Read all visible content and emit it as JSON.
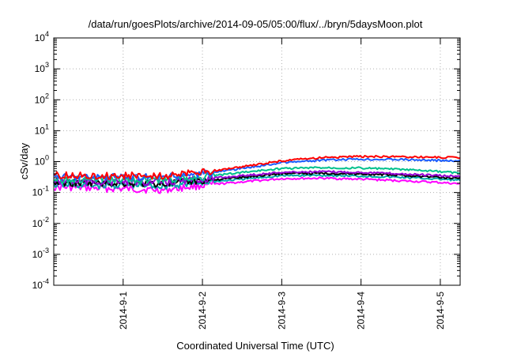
{
  "chart_data": {
    "type": "line",
    "title": "/data/run/goesPlots/archive/2014-09-05/05:00/flux/../bryn/5daysMoon.plot",
    "xlabel": "Coordinated Universal Time (UTC)",
    "ylabel": "cSv/day",
    "y_scale": "log",
    "ylim": [
      0.0001,
      10000
    ],
    "y_ticks": [
      {
        "base": "10",
        "exp": "-4",
        "value": 0.0001
      },
      {
        "base": "10",
        "exp": "-3",
        "value": 0.001
      },
      {
        "base": "10",
        "exp": "-2",
        "value": 0.01
      },
      {
        "base": "10",
        "exp": "-1",
        "value": 0.1
      },
      {
        "base": "10",
        "exp": "0",
        "value": 1
      },
      {
        "base": "10",
        "exp": "1",
        "value": 10
      },
      {
        "base": "10",
        "exp": "2",
        "value": 100
      },
      {
        "base": "10",
        "exp": "3",
        "value": 1000
      },
      {
        "base": "10",
        "exp": "4",
        "value": 10000
      }
    ],
    "xlim": [
      "2014-08-31T03:00",
      "2014-09-05T06:00"
    ],
    "x_ticks": [
      {
        "label": "2014-9-1",
        "value": "2014-09-01T00:00"
      },
      {
        "label": "2014-9-2",
        "value": "2014-09-02T00:00"
      },
      {
        "label": "2014-9-3",
        "value": "2014-09-03T00:00"
      },
      {
        "label": "2014-9-4",
        "value": "2014-09-04T00:00"
      },
      {
        "label": "2014-9-5",
        "value": "2014-09-05T00:00"
      }
    ],
    "grid": true,
    "legend": "none",
    "x": [
      "2014-08-31T03:00",
      "2014-08-31T12:00",
      "2014-09-01T00:00",
      "2014-09-01T12:00",
      "2014-09-02T00:00",
      "2014-09-02T12:00",
      "2014-09-03T00:00",
      "2014-09-03T12:00",
      "2014-09-04T00:00",
      "2014-09-04T12:00",
      "2014-09-05T00:00",
      "2014-09-05T06:00"
    ],
    "series": [
      {
        "color": "#ff0000",
        "values": [
          0.36,
          0.35,
          0.35,
          0.34,
          0.45,
          0.68,
          1.05,
          1.35,
          1.45,
          1.45,
          1.38,
          1.35
        ]
      },
      {
        "color": "#1a5cff",
        "values": [
          0.33,
          0.32,
          0.32,
          0.31,
          0.4,
          0.6,
          0.92,
          1.1,
          1.2,
          1.18,
          1.08,
          1.03
        ]
      },
      {
        "color": "#00c08c",
        "values": [
          0.27,
          0.26,
          0.26,
          0.25,
          0.32,
          0.45,
          0.6,
          0.64,
          0.62,
          0.56,
          0.47,
          0.43
        ]
      },
      {
        "color": "#9400d3",
        "values": [
          0.23,
          0.22,
          0.22,
          0.21,
          0.27,
          0.35,
          0.45,
          0.47,
          0.45,
          0.4,
          0.35,
          0.33
        ]
      },
      {
        "color": "#000000",
        "values": [
          0.21,
          0.2,
          0.2,
          0.19,
          0.24,
          0.31,
          0.41,
          0.42,
          0.4,
          0.36,
          0.31,
          0.29
        ]
      },
      {
        "color": "#00aaaa",
        "values": [
          0.18,
          0.17,
          0.17,
          0.16,
          0.21,
          0.27,
          0.35,
          0.36,
          0.34,
          0.31,
          0.27,
          0.25
        ]
      },
      {
        "color": "#ff00ff",
        "values": [
          0.15,
          0.14,
          0.13,
          0.12,
          0.17,
          0.22,
          0.28,
          0.29,
          0.27,
          0.24,
          0.21,
          0.19
        ]
      }
    ]
  }
}
